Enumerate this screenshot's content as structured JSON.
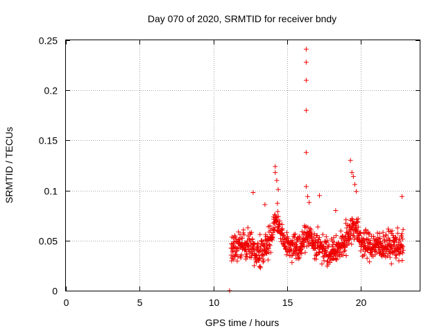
{
  "chart_data": {
    "type": "scatter",
    "title": "Day 070 of 2020, SRMTID for receiver bndy",
    "xlabel": "GPS time / hours",
    "ylabel": "SRMTID / TECUs",
    "xlim": [
      0,
      24
    ],
    "ylim": [
      0,
      0.25
    ],
    "x_ticks": [
      0,
      5,
      10,
      15,
      20
    ],
    "y_ticks": [
      0,
      0.05,
      0.1,
      0.15,
      0.2,
      0.25
    ],
    "x_tick_labels": [
      "0",
      "5",
      "10",
      "15",
      "20"
    ],
    "y_tick_labels": [
      "0",
      "0.05",
      "0.1",
      "0.15",
      "0.2",
      "0.25"
    ],
    "grid": true,
    "marker": "+",
    "color": "#ee0000",
    "series": [
      {
        "name": "SRMTID",
        "data_window_hours": [
          11.2,
          22.9
        ],
        "baseline_value": 0.045,
        "typical_range": [
          0.015,
          0.09
        ],
        "points": [
          [
            11.1,
            0.0
          ],
          [
            14.2,
            0.124
          ],
          [
            14.2,
            0.118
          ],
          [
            14.3,
            0.11
          ],
          [
            14.4,
            0.101
          ],
          [
            16.3,
            0.241
          ],
          [
            16.3,
            0.228
          ],
          [
            16.3,
            0.21
          ],
          [
            16.3,
            0.18
          ],
          [
            16.3,
            0.138
          ],
          [
            16.3,
            0.104
          ],
          [
            16.4,
            0.094
          ],
          [
            16.5,
            0.088
          ],
          [
            19.3,
            0.13
          ],
          [
            19.4,
            0.118
          ],
          [
            19.5,
            0.114
          ],
          [
            19.6,
            0.106
          ],
          [
            19.7,
            0.099
          ],
          [
            22.8,
            0.094
          ],
          [
            12.7,
            0.098
          ],
          [
            13.5,
            0.086
          ],
          [
            17.2,
            0.095
          ],
          [
            18.3,
            0.08
          ]
        ]
      }
    ]
  }
}
